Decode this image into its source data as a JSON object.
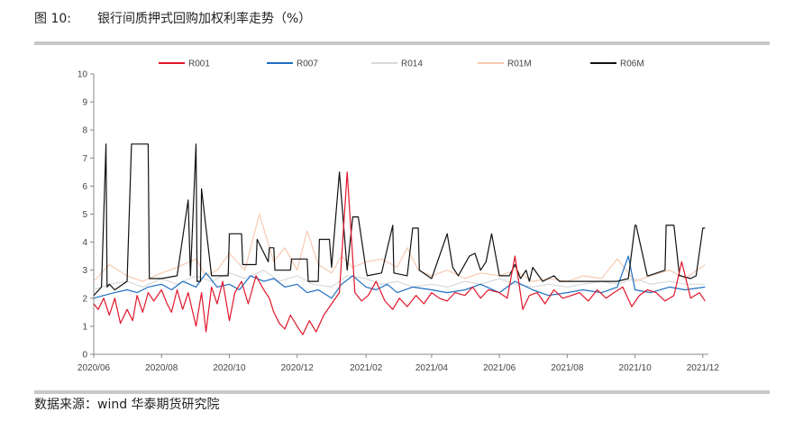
{
  "figure": {
    "label": "图 10:",
    "title": "银行间质押式回购加权利率走势（%）",
    "source": "数据来源：wind 华泰期货研究院"
  },
  "colors": {
    "R001": "#e0162b",
    "R007": "#1f6fc1",
    "R014": "#d9d9d9",
    "R01M": "#f7cbb4",
    "R06M": "#111111"
  },
  "chart_data": {
    "type": "line",
    "title": "",
    "xlabel": "",
    "ylabel": "",
    "ylim": [
      0,
      10
    ],
    "yticks": [
      0,
      1,
      2,
      3,
      4,
      5,
      6,
      7,
      8,
      9,
      10
    ],
    "xlim": [
      "2020-06-01",
      "2021-12-06"
    ],
    "xticks": [
      "2020/06",
      "2020/08",
      "2020/10",
      "2020/12",
      "2021/02",
      "2021/04",
      "2021/06",
      "2021/08",
      "2021/10",
      "2021/12"
    ],
    "grid": false,
    "legend": "top",
    "series": [
      {
        "name": "R001",
        "x": [
          "2020-06-01",
          "2020-06-05",
          "2020-06-10",
          "2020-06-15",
          "2020-06-20",
          "2020-06-25",
          "2020-07-01",
          "2020-07-06",
          "2020-07-10",
          "2020-07-15",
          "2020-07-20",
          "2020-07-25",
          "2020-08-01",
          "2020-08-06",
          "2020-08-10",
          "2020-08-15",
          "2020-08-20",
          "2020-08-25",
          "2020-09-01",
          "2020-09-06",
          "2020-09-10",
          "2020-09-15",
          "2020-09-20",
          "2020-09-25",
          "2020-10-01",
          "2020-10-06",
          "2020-10-12",
          "2020-10-18",
          "2020-10-25",
          "2020-11-01",
          "2020-11-06",
          "2020-11-10",
          "2020-11-15",
          "2020-11-20",
          "2020-11-25",
          "2020-12-01",
          "2020-12-06",
          "2020-12-12",
          "2020-12-18",
          "2020-12-25",
          "2021-01-01",
          "2021-01-08",
          "2021-01-15",
          "2021-01-22",
          "2021-01-28",
          "2021-02-03",
          "2021-02-10",
          "2021-02-18",
          "2021-02-25",
          "2021-03-03",
          "2021-03-10",
          "2021-03-18",
          "2021-03-25",
          "2021-04-01",
          "2021-04-08",
          "2021-04-15",
          "2021-04-22",
          "2021-05-01",
          "2021-05-08",
          "2021-05-15",
          "2021-05-22",
          "2021-06-01",
          "2021-06-08",
          "2021-06-15",
          "2021-06-22",
          "2021-06-28",
          "2021-07-05",
          "2021-07-12",
          "2021-07-20",
          "2021-07-28",
          "2021-08-05",
          "2021-08-12",
          "2021-08-20",
          "2021-08-28",
          "2021-09-05",
          "2021-09-12",
          "2021-09-20",
          "2021-09-28",
          "2021-10-05",
          "2021-10-12",
          "2021-10-20",
          "2021-10-28",
          "2021-11-05",
          "2021-11-12",
          "2021-11-20",
          "2021-11-28",
          "2021-12-03"
        ],
        "values": [
          1.8,
          1.6,
          2.0,
          1.4,
          2.0,
          1.1,
          1.6,
          1.2,
          2.1,
          1.5,
          2.2,
          1.9,
          2.3,
          1.8,
          1.5,
          2.3,
          1.6,
          2.2,
          1.0,
          2.2,
          0.8,
          2.4,
          1.8,
          2.6,
          1.2,
          2.2,
          2.6,
          1.8,
          2.8,
          2.3,
          2.0,
          1.5,
          1.1,
          0.9,
          1.4,
          1.0,
          0.7,
          1.2,
          0.8,
          1.4,
          1.8,
          2.2,
          6.5,
          2.2,
          1.9,
          2.1,
          2.6,
          1.9,
          1.6,
          2.0,
          1.7,
          2.1,
          1.8,
          2.2,
          2.0,
          1.9,
          2.2,
          2.1,
          2.4,
          2.0,
          2.3,
          2.2,
          2.0,
          3.5,
          1.6,
          2.1,
          2.2,
          1.8,
          2.3,
          2.0,
          2.1,
          2.2,
          1.9,
          2.3,
          2.0,
          2.2,
          2.4,
          1.7,
          2.1,
          2.3,
          2.2,
          1.9,
          2.1,
          3.3,
          2.0,
          2.2,
          1.9
        ]
      },
      {
        "name": "R007",
        "x": [
          "2020-06-01",
          "2020-06-10",
          "2020-06-20",
          "2020-07-01",
          "2020-07-10",
          "2020-07-20",
          "2020-08-01",
          "2020-08-10",
          "2020-08-20",
          "2020-09-01",
          "2020-09-10",
          "2020-09-20",
          "2020-10-01",
          "2020-10-10",
          "2020-10-20",
          "2020-11-01",
          "2020-11-10",
          "2020-11-20",
          "2020-12-01",
          "2020-12-10",
          "2020-12-20",
          "2021-01-01",
          "2021-01-10",
          "2021-01-20",
          "2021-02-01",
          "2021-02-10",
          "2021-02-20",
          "2021-03-01",
          "2021-03-15",
          "2021-04-01",
          "2021-04-15",
          "2021-05-01",
          "2021-05-15",
          "2021-06-01",
          "2021-06-15",
          "2021-07-01",
          "2021-07-15",
          "2021-08-01",
          "2021-08-15",
          "2021-09-01",
          "2021-09-15",
          "2021-09-25",
          "2021-10-01",
          "2021-10-15",
          "2021-11-01",
          "2021-11-15",
          "2021-12-03"
        ],
        "values": [
          2.0,
          2.1,
          2.2,
          2.3,
          2.2,
          2.4,
          2.5,
          2.3,
          2.6,
          2.4,
          2.9,
          2.4,
          2.5,
          2.3,
          2.8,
          2.6,
          2.7,
          2.4,
          2.5,
          2.2,
          2.3,
          2.0,
          2.5,
          2.8,
          2.4,
          2.3,
          2.5,
          2.2,
          2.4,
          2.3,
          2.2,
          2.3,
          2.5,
          2.2,
          2.6,
          2.3,
          2.1,
          2.2,
          2.3,
          2.2,
          2.4,
          3.5,
          2.3,
          2.2,
          2.4,
          2.3,
          2.4
        ]
      },
      {
        "name": "R014",
        "x": [
          "2020-06-01",
          "2020-06-15",
          "2020-07-01",
          "2020-07-15",
          "2020-08-01",
          "2020-08-15",
          "2020-09-01",
          "2020-09-15",
          "2020-10-01",
          "2020-10-15",
          "2020-11-01",
          "2020-11-15",
          "2020-12-01",
          "2020-12-15",
          "2021-01-01",
          "2021-01-15",
          "2021-02-01",
          "2021-02-15",
          "2021-03-01",
          "2021-03-15",
          "2021-04-01",
          "2021-04-15",
          "2021-05-01",
          "2021-05-15",
          "2021-06-01",
          "2021-06-15",
          "2021-07-01",
          "2021-07-15",
          "2021-08-01",
          "2021-08-15",
          "2021-09-01",
          "2021-09-15",
          "2021-10-01",
          "2021-10-15",
          "2021-11-01",
          "2021-11-15",
          "2021-12-03"
        ],
        "values": [
          2.3,
          2.5,
          2.6,
          2.4,
          2.7,
          2.5,
          2.8,
          2.6,
          2.9,
          2.7,
          3.0,
          2.6,
          2.8,
          2.5,
          2.4,
          2.8,
          2.7,
          2.5,
          2.6,
          2.4,
          2.5,
          2.4,
          2.6,
          2.5,
          2.7,
          2.5,
          2.4,
          2.5,
          2.4,
          2.5,
          2.6,
          2.5,
          2.7,
          2.5,
          2.6,
          2.5,
          2.5
        ]
      },
      {
        "name": "R01M",
        "x": [
          "2020-06-01",
          "2020-06-15",
          "2020-07-01",
          "2020-07-15",
          "2020-08-01",
          "2020-08-15",
          "2020-09-01",
          "2020-09-10",
          "2020-09-20",
          "2020-10-01",
          "2020-10-15",
          "2020-10-28",
          "2020-11-10",
          "2020-11-20",
          "2020-12-01",
          "2020-12-10",
          "2020-12-20",
          "2021-01-01",
          "2021-01-10",
          "2021-01-20",
          "2021-02-01",
          "2021-02-15",
          "2021-03-01",
          "2021-03-10",
          "2021-03-20",
          "2021-04-01",
          "2021-04-15",
          "2021-05-01",
          "2021-05-15",
          "2021-06-01",
          "2021-06-15",
          "2021-07-01",
          "2021-07-15",
          "2021-08-01",
          "2021-08-15",
          "2021-09-01",
          "2021-09-15",
          "2021-10-01",
          "2021-10-15",
          "2021-11-01",
          "2021-11-15",
          "2021-12-03"
        ],
        "values": [
          2.6,
          3.2,
          2.8,
          2.6,
          2.9,
          3.1,
          3.4,
          2.8,
          3.0,
          3.6,
          3.0,
          5.0,
          3.3,
          3.8,
          3.0,
          4.4,
          3.2,
          2.9,
          3.5,
          3.1,
          3.3,
          3.4,
          3.1,
          3.8,
          3.0,
          2.8,
          3.0,
          2.7,
          2.9,
          2.8,
          3.0,
          2.6,
          2.7,
          2.6,
          2.8,
          2.7,
          3.4,
          2.6,
          2.8,
          3.0,
          2.7,
          3.2
        ]
      },
      {
        "name": "R06M",
        "x": [
          "2020-06-01",
          "2020-06-08",
          "2020-06-12",
          "2020-06-13",
          "2020-06-15",
          "2020-06-20",
          "2020-07-01",
          "2020-07-05",
          "2020-07-06",
          "2020-07-20",
          "2020-07-21",
          "2020-08-01",
          "2020-08-15",
          "2020-08-25",
          "2020-08-27",
          "2020-09-01",
          "2020-09-02",
          "2020-09-05",
          "2020-09-06",
          "2020-09-15",
          "2020-09-30",
          "2020-10-01",
          "2020-10-03",
          "2020-10-12",
          "2020-10-13",
          "2020-10-25",
          "2020-10-26",
          "2020-11-05",
          "2020-11-06",
          "2020-11-10",
          "2020-11-11",
          "2020-11-25",
          "2020-11-26",
          "2020-12-10",
          "2020-12-11",
          "2020-12-20",
          "2020-12-21",
          "2020-12-30",
          "2021-01-01",
          "2021-01-08",
          "2021-01-15",
          "2021-01-20",
          "2021-01-21",
          "2021-01-25",
          "2021-02-01",
          "2021-02-02",
          "2021-02-15",
          "2021-02-25",
          "2021-02-26",
          "2021-03-10",
          "2021-03-15",
          "2021-03-20",
          "2021-03-21",
          "2021-04-01",
          "2021-04-15",
          "2021-04-20",
          "2021-04-25",
          "2021-05-05",
          "2021-05-10",
          "2021-05-15",
          "2021-05-20",
          "2021-05-25",
          "2021-06-01",
          "2021-06-10",
          "2021-06-15",
          "2021-06-20",
          "2021-06-25",
          "2021-06-28",
          "2021-07-01",
          "2021-07-10",
          "2021-07-20",
          "2021-07-25",
          "2021-08-01",
          "2021-08-10",
          "2021-08-20",
          "2021-09-01",
          "2021-09-15",
          "2021-09-25",
          "2021-10-01",
          "2021-10-02",
          "2021-10-12",
          "2021-10-13",
          "2021-10-28",
          "2021-10-29",
          "2021-11-05",
          "2021-11-10",
          "2021-11-11",
          "2021-11-20",
          "2021-11-25",
          "2021-12-01",
          "2021-12-03"
        ],
        "values": [
          2.1,
          2.4,
          7.5,
          2.4,
          2.5,
          2.3,
          2.6,
          7.5,
          7.5,
          7.5,
          2.7,
          2.7,
          2.8,
          5.5,
          2.8,
          7.5,
          2.6,
          2.6,
          5.9,
          2.8,
          2.8,
          4.3,
          4.3,
          4.3,
          3.2,
          3.2,
          4.1,
          3.3,
          3.8,
          3.8,
          3.0,
          3.0,
          3.4,
          3.4,
          2.6,
          2.6,
          4.1,
          4.1,
          3.1,
          6.5,
          3.0,
          4.9,
          4.9,
          4.9,
          3.0,
          2.8,
          2.9,
          4.6,
          2.9,
          2.8,
          4.5,
          4.5,
          3.0,
          2.7,
          4.3,
          3.1,
          2.8,
          3.5,
          3.6,
          3.0,
          3.3,
          4.3,
          2.8,
          2.8,
          3.2,
          2.7,
          3.0,
          2.6,
          3.1,
          2.6,
          2.8,
          2.6,
          2.6,
          2.6,
          2.6,
          2.6,
          2.6,
          2.7,
          4.6,
          4.6,
          2.8,
          2.8,
          3.0,
          4.6,
          4.6,
          2.8,
          2.8,
          2.7,
          2.8,
          4.5,
          4.5
        ]
      }
    ]
  }
}
